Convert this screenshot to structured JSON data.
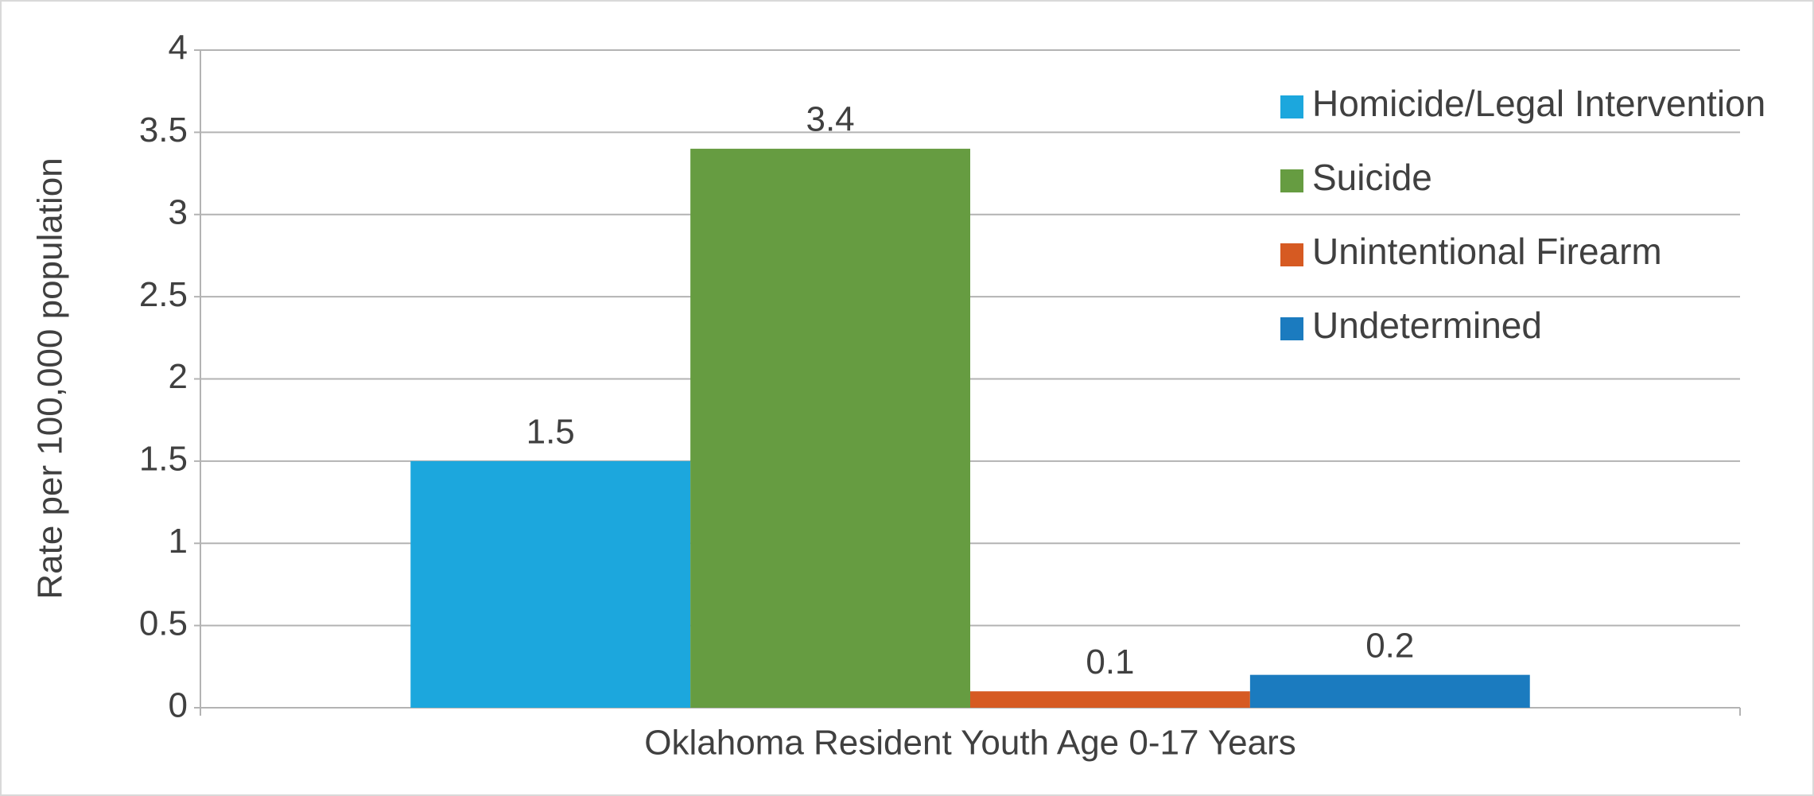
{
  "chart_data": {
    "type": "bar",
    "y_label": "Rate per 100,000 population",
    "categories": [
      "Oklahoma Resident Youth Age 0-17 Years"
    ],
    "series": [
      {
        "name": "Homicide/Legal Intervention",
        "color": "#1ca7dd",
        "values": [
          1.5
        ]
      },
      {
        "name": "Suicide",
        "color": "#669c41",
        "values": [
          3.4
        ]
      },
      {
        "name": "Unintentional Firearm",
        "color": "#d65a22",
        "values": [
          0.1
        ]
      },
      {
        "name": "Undetermined",
        "color": "#1b7bbf",
        "values": [
          0.2
        ]
      }
    ],
    "ylim": [
      0,
      4
    ],
    "yticks": [
      0,
      0.5,
      1,
      1.5,
      2,
      2.5,
      3,
      3.5,
      4
    ],
    "grid": true,
    "legend": "top-right",
    "data_labels": true
  }
}
